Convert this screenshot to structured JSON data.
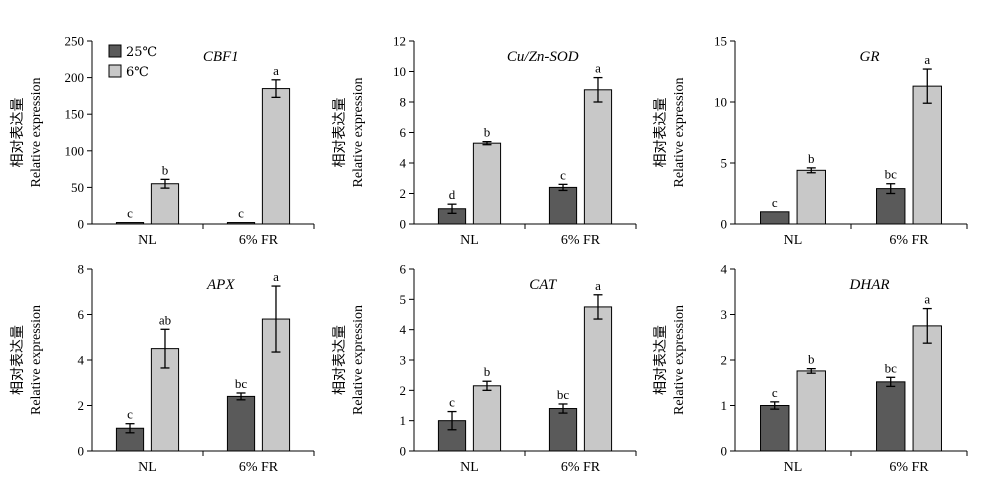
{
  "colors": {
    "25C": "#5a5a5a",
    "6C": "#c8c8c8",
    "axis": "#000000"
  },
  "legend": [
    {
      "name": "25℃",
      "color": "#5a5a5a"
    },
    {
      "name": "6℃",
      "color": "#c8c8c8"
    }
  ],
  "ylabel_cn": "相对表达量",
  "ylabel_en": "Relative expression",
  "chart_data": [
    {
      "type": "bar",
      "title": "CBF1",
      "categories": [
        "NL",
        "6% FR"
      ],
      "ylim": [
        0,
        250
      ],
      "yticks": [
        0,
        50,
        100,
        150,
        200,
        250
      ],
      "legend": true,
      "series": [
        {
          "name": "25℃",
          "values": [
            2,
            2
          ],
          "errors": [
            0,
            0
          ],
          "letters": [
            "c",
            "c"
          ]
        },
        {
          "name": "6℃",
          "values": [
            55,
            185
          ],
          "errors": [
            6,
            12
          ],
          "letters": [
            "b",
            "a"
          ]
        }
      ]
    },
    {
      "type": "bar",
      "title": "Cu/Zn-SOD",
      "categories": [
        "NL",
        "6% FR"
      ],
      "ylim": [
        0,
        12
      ],
      "yticks": [
        0,
        2,
        4,
        6,
        8,
        10,
        12
      ],
      "series": [
        {
          "name": "25℃",
          "values": [
            1.0,
            2.4
          ],
          "errors": [
            0.3,
            0.2
          ],
          "letters": [
            "d",
            "c"
          ]
        },
        {
          "name": "6℃",
          "values": [
            5.3,
            8.8
          ],
          "errors": [
            0.1,
            0.8
          ],
          "letters": [
            "b",
            "a"
          ]
        }
      ]
    },
    {
      "type": "bar",
      "title": "GR",
      "categories": [
        "NL",
        "6% FR"
      ],
      "ylim": [
        0,
        15
      ],
      "yticks": [
        0,
        5,
        10,
        15
      ],
      "series": [
        {
          "name": "25℃",
          "values": [
            1.0,
            2.9
          ],
          "errors": [
            0,
            0.4
          ],
          "letters": [
            "c",
            "bc"
          ]
        },
        {
          "name": "6℃",
          "values": [
            4.4,
            11.3
          ],
          "errors": [
            0.2,
            1.4
          ],
          "letters": [
            "b",
            "a"
          ]
        }
      ]
    },
    {
      "type": "bar",
      "title": "APX",
      "categories": [
        "NL",
        "6% FR"
      ],
      "ylim": [
        0,
        8
      ],
      "yticks": [
        0,
        2,
        4,
        6,
        8
      ],
      "series": [
        {
          "name": "25℃",
          "values": [
            1.0,
            2.4
          ],
          "errors": [
            0.2,
            0.15
          ],
          "letters": [
            "c",
            "bc"
          ]
        },
        {
          "name": "6℃",
          "values": [
            4.5,
            5.8
          ],
          "errors": [
            0.85,
            1.45
          ],
          "letters": [
            "ab",
            "a"
          ]
        }
      ]
    },
    {
      "type": "bar",
      "title": "CAT",
      "categories": [
        "NL",
        "6% FR"
      ],
      "ylim": [
        0,
        6
      ],
      "yticks": [
        0,
        1,
        2,
        3,
        4,
        5,
        6
      ],
      "series": [
        {
          "name": "25℃",
          "values": [
            1.0,
            1.4
          ],
          "errors": [
            0.3,
            0.15
          ],
          "letters": [
            "c",
            "bc"
          ]
        },
        {
          "name": "6℃",
          "values": [
            2.15,
            4.75
          ],
          "errors": [
            0.15,
            0.4
          ],
          "letters": [
            "b",
            "a"
          ]
        }
      ]
    },
    {
      "type": "bar",
      "title": "DHAR",
      "categories": [
        "NL",
        "6% FR"
      ],
      "ylim": [
        0,
        4
      ],
      "yticks": [
        0,
        1,
        2,
        3,
        4
      ],
      "series": [
        {
          "name": "25℃",
          "values": [
            1.0,
            1.52
          ],
          "errors": [
            0.08,
            0.1
          ],
          "letters": [
            "c",
            "bc"
          ]
        },
        {
          "name": "6℃",
          "values": [
            1.76,
            2.75
          ],
          "errors": [
            0.05,
            0.38
          ],
          "letters": [
            "b",
            "a"
          ]
        }
      ]
    }
  ]
}
